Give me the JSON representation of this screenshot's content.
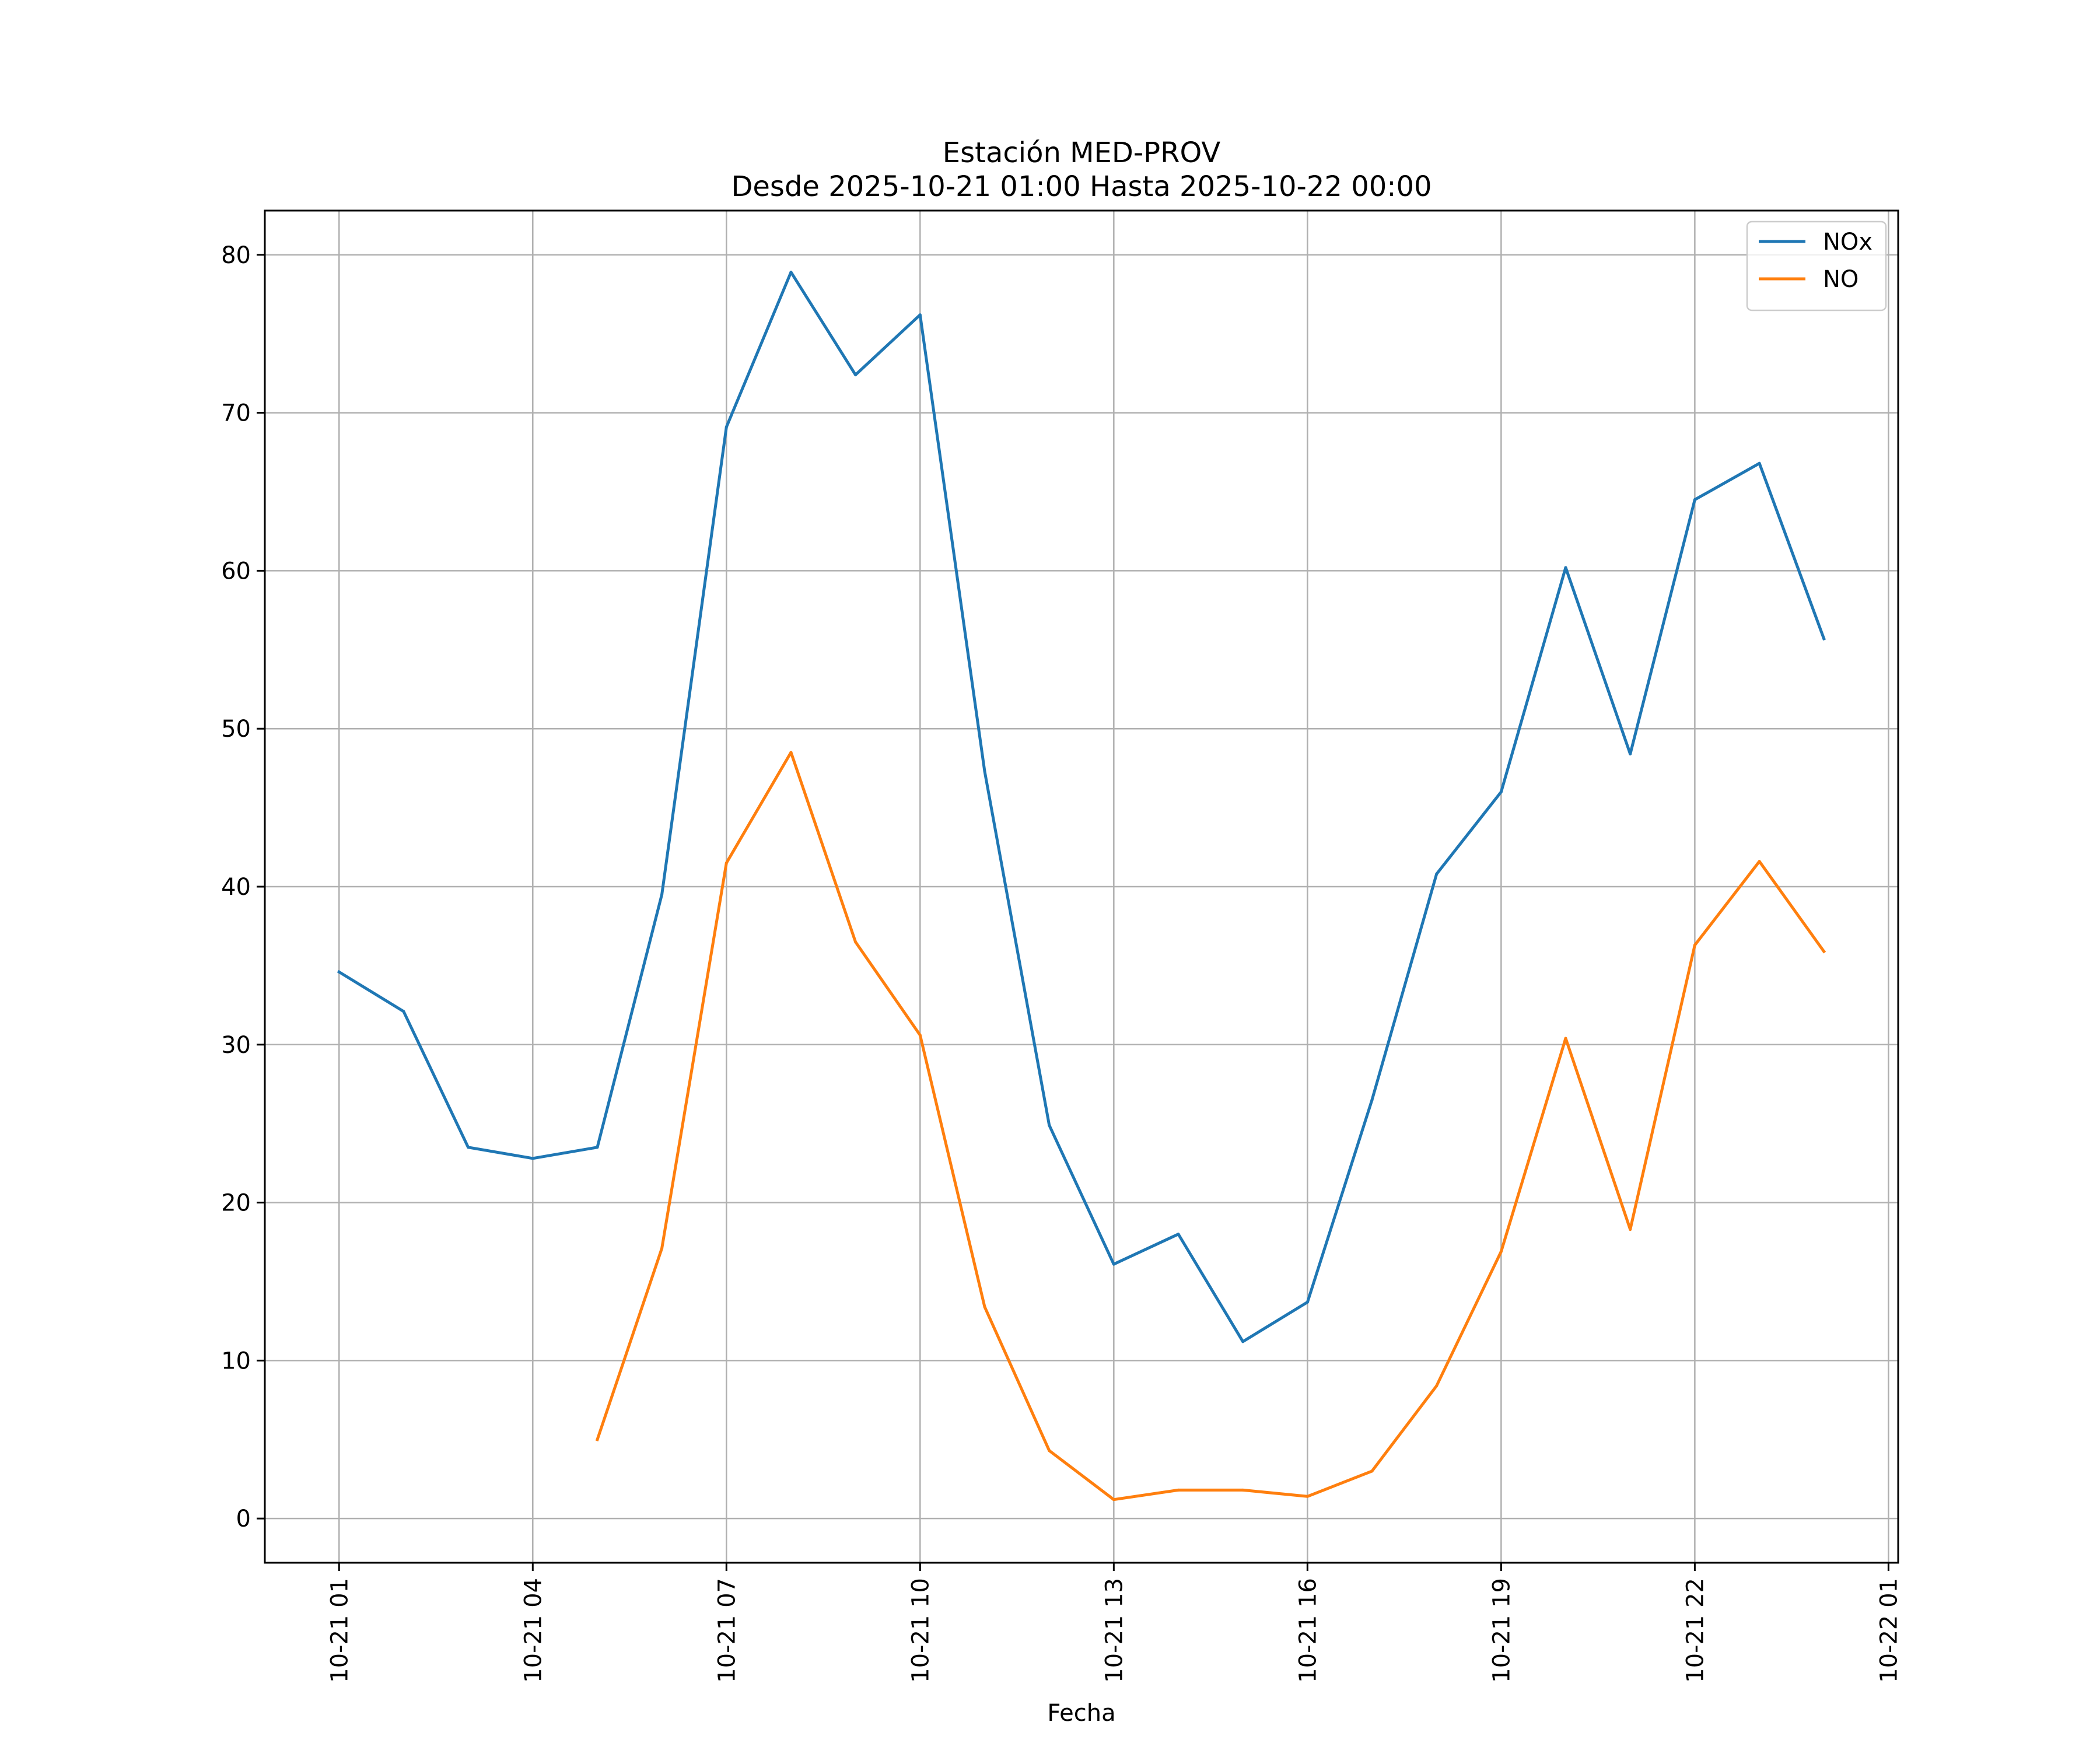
{
  "chart_data": {
    "type": "line",
    "title": "Estación MED-PROV",
    "subtitle": "Desde 2025-10-21 01:00 Hasta 2025-10-22 00:00",
    "xlabel": "Fecha",
    "ylabel": "",
    "x": [
      "2025-10-21 01:00",
      "2025-10-21 02:00",
      "2025-10-21 03:00",
      "2025-10-21 04:00",
      "2025-10-21 05:00",
      "2025-10-21 06:00",
      "2025-10-21 07:00",
      "2025-10-21 08:00",
      "2025-10-21 09:00",
      "2025-10-21 10:00",
      "2025-10-21 11:00",
      "2025-10-21 12:00",
      "2025-10-21 13:00",
      "2025-10-21 14:00",
      "2025-10-21 15:00",
      "2025-10-21 16:00",
      "2025-10-21 17:00",
      "2025-10-21 18:00",
      "2025-10-21 19:00",
      "2025-10-21 20:00",
      "2025-10-21 21:00",
      "2025-10-21 22:00",
      "2025-10-21 23:00",
      "2025-10-22 00:00"
    ],
    "x_hours": [
      1,
      2,
      3,
      4,
      5,
      6,
      7,
      8,
      9,
      10,
      11,
      12,
      13,
      14,
      15,
      16,
      17,
      18,
      19,
      20,
      21,
      22,
      23,
      24
    ],
    "xlim_hours": [
      -0.15,
      25.15
    ],
    "x_ticks": [
      {
        "hour": 1,
        "label": "10-21 01"
      },
      {
        "hour": 4,
        "label": "10-21 04"
      },
      {
        "hour": 7,
        "label": "10-21 07"
      },
      {
        "hour": 10,
        "label": "10-21 10"
      },
      {
        "hour": 13,
        "label": "10-21 13"
      },
      {
        "hour": 16,
        "label": "10-21 16"
      },
      {
        "hour": 19,
        "label": "10-21 19"
      },
      {
        "hour": 22,
        "label": "10-21 22"
      },
      {
        "hour": 25,
        "label": "10-22 01"
      }
    ],
    "ylim": [
      -2.8,
      82.8
    ],
    "y_ticks": [
      0,
      10,
      20,
      30,
      40,
      50,
      60,
      70,
      80
    ],
    "grid": true,
    "legend_position": "top-right",
    "series": [
      {
        "name": "NOx",
        "color": "#1f77b4",
        "values": [
          34.6,
          32.1,
          23.5,
          22.8,
          23.5,
          39.5,
          69.1,
          78.9,
          72.4,
          76.2,
          47.3,
          24.9,
          16.1,
          18.0,
          11.2,
          13.7,
          26.5,
          40.8,
          46.0,
          60.2,
          48.4,
          64.5,
          66.8,
          55.7
        ]
      },
      {
        "name": "NO",
        "color": "#ff7f0e",
        "values": [
          null,
          null,
          null,
          null,
          5.0,
          17.1,
          41.5,
          48.5,
          36.5,
          30.6,
          13.4,
          4.3,
          1.2,
          1.8,
          1.8,
          1.4,
          3.0,
          8.4,
          16.9,
          30.4,
          18.3,
          36.3,
          41.6,
          35.9
        ]
      }
    ]
  }
}
